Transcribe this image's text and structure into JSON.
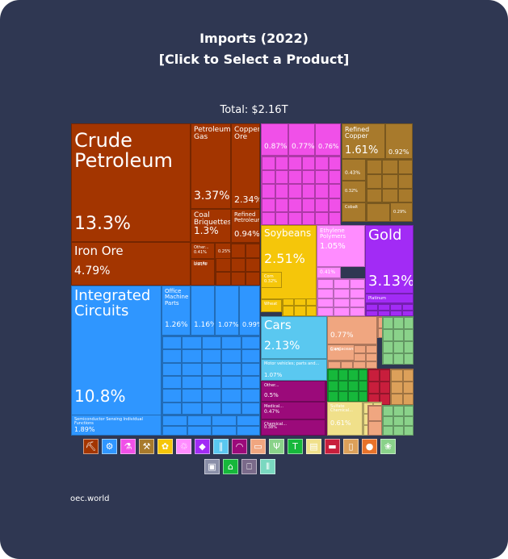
{
  "header": {
    "title_line1": "Imports (2022)",
    "title_line2": "[Click to Select a Product]"
  },
  "total_label": "Total: $2.16T",
  "source": "oec.world",
  "sector_colors": {
    "mineral": "#a33500",
    "chemical": "#f050e8",
    "metals": "#a87a2c",
    "precious": "#a22bf5",
    "vegetable": "#f5c60a",
    "plastics": "#ff8cff",
    "machines": "#2f96ff",
    "transport": "#5ac8f0",
    "instruments": "#9b0a7a",
    "stone": "#f0a680",
    "animal": "#f0e08a",
    "textiles": "#16b83b",
    "foodstuffs": "#c81e3c",
    "paper": "#dca05a",
    "misc": "#8ad28a"
  },
  "chart_data": {
    "type": "treemap",
    "title": "Imports (2022)",
    "subtitle": "[Click to Select a Product]",
    "total": "$2.16T",
    "items": [
      {
        "name": "Crude Petroleum",
        "share": 13.3,
        "label": "13.3%",
        "sector": "mineral"
      },
      {
        "name": "Iron Ore",
        "share": 4.79,
        "label": "4.79%",
        "sector": "mineral"
      },
      {
        "name": "Petroleum Gas",
        "share": 3.37,
        "label": "3.37%",
        "sector": "mineral"
      },
      {
        "name": "Copper Ore",
        "share": 2.34,
        "label": "2.34%",
        "sector": "mineral"
      },
      {
        "name": "Coal Briquettes",
        "share": 1.3,
        "label": "1.3%",
        "sector": "mineral"
      },
      {
        "name": "Refined Petroleum",
        "share": 0.94,
        "label": "0.94%",
        "sector": "mineral"
      },
      {
        "name": "Other...",
        "share": 0.41,
        "label": "0.41%",
        "sector": "mineral"
      },
      {
        "name": "Other",
        "share": 0.25,
        "label": "0.25%",
        "sector": "mineral"
      },
      {
        "name": "Lignite",
        "share": 0.41,
        "label": "0.41%",
        "sector": "mineral"
      },
      {
        "name": "Integrated Circuits",
        "share": 10.8,
        "label": "10.8%",
        "sector": "machines"
      },
      {
        "name": "Office Machine Parts",
        "share": 1.26,
        "label": "1.26%",
        "sector": "machines"
      },
      {
        "name": "",
        "share": 1.16,
        "label": "1.16%",
        "sector": "machines"
      },
      {
        "name": "",
        "share": 1.07,
        "label": "1.07%",
        "sector": "machines"
      },
      {
        "name": "",
        "share": 0.99,
        "label": "0.99%",
        "sector": "machines"
      },
      {
        "name": "Semiconductor Devices",
        "share": 1.89,
        "label": "1.89%",
        "sector": "machines"
      },
      {
        "name": "",
        "share": 0.87,
        "label": "0.87%",
        "sector": "chemical"
      },
      {
        "name": "",
        "share": 0.77,
        "label": "0.77%",
        "sector": "chemical"
      },
      {
        "name": "",
        "share": 0.76,
        "label": "0.76%",
        "sector": "chemical"
      },
      {
        "name": "Refined Copper",
        "share": 1.61,
        "label": "1.61%",
        "sector": "metals"
      },
      {
        "name": "",
        "share": 0.92,
        "label": "0.92%",
        "sector": "metals"
      },
      {
        "name": "",
        "share": 0.43,
        "label": "0.43%",
        "sector": "metals"
      },
      {
        "name": "",
        "share": 0.32,
        "label": "0.32%",
        "sector": "metals"
      },
      {
        "name": "Cobalt",
        "share": null,
        "label": "",
        "sector": "metals"
      },
      {
        "name": "",
        "share": 0.29,
        "label": "0.29%",
        "sector": "metals"
      },
      {
        "name": "Soybeans",
        "share": 2.51,
        "label": "2.51%",
        "sector": "vegetable"
      },
      {
        "name": "Corn",
        "share": 0.32,
        "label": "0.32%",
        "sector": "vegetable"
      },
      {
        "name": "Wheat",
        "share": null,
        "label": "",
        "sector": "vegetable"
      },
      {
        "name": "Ethylene Polymers",
        "share": 1.05,
        "label": "1.05%",
        "sector": "plastics"
      },
      {
        "name": "",
        "share": 0.41,
        "label": "0.41%",
        "sector": "plastics"
      },
      {
        "name": "Gold",
        "share": 3.13,
        "label": "3.13%",
        "sector": "precious"
      },
      {
        "name": "Platinum",
        "share": null,
        "label": "",
        "sector": "precious"
      },
      {
        "name": "Cars",
        "share": 2.13,
        "label": "2.13%",
        "sector": "transport"
      },
      {
        "name": "Motor vehicles; parts and...",
        "share": 1.07,
        "label": "1.07%",
        "sector": "transport"
      },
      {
        "name": "",
        "share": 0.77,
        "label": "0.77%",
        "sector": "stone"
      },
      {
        "name": "Crustaceans",
        "share": 0.4,
        "label": "0.4%",
        "sector": "stone"
      },
      {
        "name": "Other...",
        "share": 0.5,
        "label": "0.5%",
        "sector": "instruments"
      },
      {
        "name": "Medical...",
        "share": 0.47,
        "label": "0.47%",
        "sector": "instruments"
      },
      {
        "name": "Chemical...",
        "share": 0.38,
        "label": "0.38%",
        "sector": "instruments"
      },
      {
        "name": "Sulfate Chemical...",
        "share": 0.61,
        "label": "0.61%",
        "sector": "animal"
      }
    ]
  },
  "sector_icons": [
    {
      "name": "mineral-products-icon",
      "glyph": "⛏",
      "color": "#a33500"
    },
    {
      "name": "machines-icon",
      "glyph": "⚙",
      "color": "#2f96ff"
    },
    {
      "name": "chemical-products-icon",
      "glyph": "⚗",
      "color": "#f050e8"
    },
    {
      "name": "metals-icon",
      "glyph": "⚒",
      "color": "#a87a2c"
    },
    {
      "name": "vegetable-products-icon",
      "glyph": "✿",
      "color": "#f5c60a"
    },
    {
      "name": "plastics-rubbers-icon",
      "glyph": "♲",
      "color": "#ff8cff"
    },
    {
      "name": "precious-metals-icon",
      "glyph": "◆",
      "color": "#a22bf5"
    },
    {
      "name": "transportation-icon",
      "glyph": "∥",
      "color": "#5ac8f0"
    },
    {
      "name": "instruments-icon",
      "glyph": "◠",
      "color": "#9b0a7a"
    },
    {
      "name": "stone-glass-icon",
      "glyph": "▭",
      "color": "#f0a680"
    },
    {
      "name": "foodstuffs-icon",
      "glyph": "Ψ",
      "color": "#8ad28a"
    },
    {
      "name": "textiles-icon",
      "glyph": "T",
      "color": "#16b83b"
    },
    {
      "name": "paper-goods-icon",
      "glyph": "▤",
      "color": "#f0e08a"
    },
    {
      "name": "animal-hides-icon",
      "glyph": "▬",
      "color": "#c81e3c"
    },
    {
      "name": "wood-products-icon",
      "glyph": "▯",
      "color": "#dca05a"
    },
    {
      "name": "animal-products-icon",
      "glyph": "●",
      "color": "#e8722a"
    },
    {
      "name": "animal-vegetable-oils-icon",
      "glyph": "❀",
      "color": "#8ad28a"
    },
    {
      "name": "miscellaneous-icon",
      "glyph": "▣",
      "color": "#8a8fa8"
    },
    {
      "name": "footwear-headwear-icon",
      "glyph": "⌂",
      "color": "#16b83b"
    },
    {
      "name": "arts-antiques-icon",
      "glyph": "⎕",
      "color": "#7a6a8a"
    },
    {
      "name": "weapons-icon",
      "glyph": "⦀",
      "color": "#7ad8c0"
    }
  ]
}
